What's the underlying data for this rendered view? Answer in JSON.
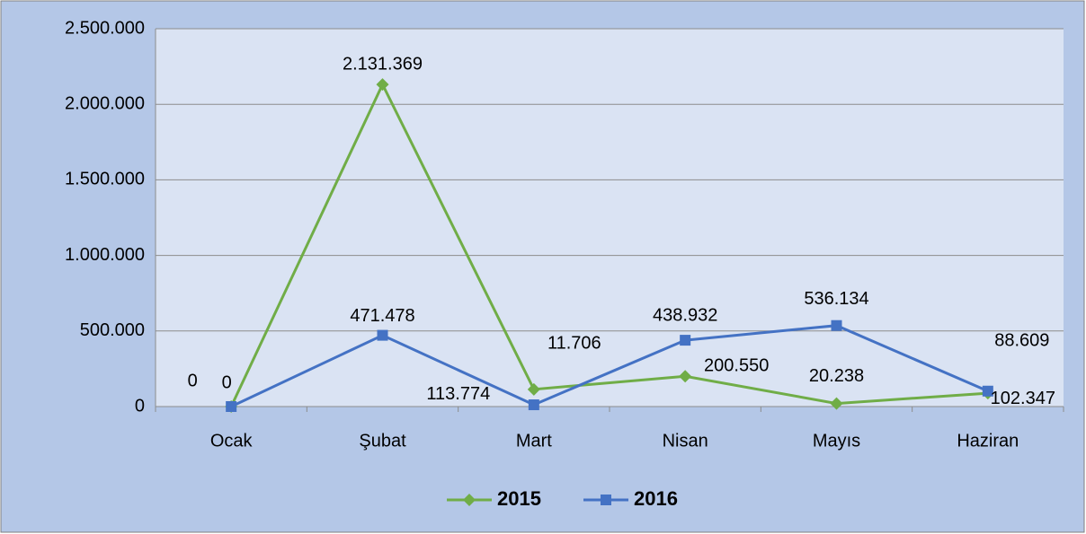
{
  "chart_data": {
    "type": "line",
    "categories": [
      "Ocak",
      "Şubat",
      "Mart",
      "Nisan",
      "Mayıs",
      "Haziran"
    ],
    "series": [
      {
        "name": "2015",
        "color": "#70ad47",
        "marker": "diamond",
        "values": [
          0,
          2131369,
          113774,
          200550,
          20238,
          88609
        ],
        "value_labels": [
          "0",
          "2.131.369",
          "113.774",
          "200.550",
          "20.238",
          "88.609"
        ]
      },
      {
        "name": "2016",
        "color": "#4472c4",
        "marker": "square",
        "values": [
          0,
          471478,
          11706,
          438932,
          536134,
          102347
        ],
        "value_labels": [
          "0",
          "471.478",
          "11.706",
          "438.932",
          "536.134",
          "102.347"
        ]
      }
    ],
    "ylim": [
      0,
      2500000
    ],
    "yticks": [
      0,
      {
        "value": 500000,
        "label": "500.000"
      },
      {
        "value": 1000000,
        "label": "1.000.000"
      },
      {
        "value": 1500000,
        "label": "1.500.000"
      },
      {
        "value": 2000000,
        "label": "2.000.000"
      },
      {
        "value": 2500000,
        "label": "2.500.000"
      }
    ],
    "grid": true,
    "legend": "bottom"
  }
}
